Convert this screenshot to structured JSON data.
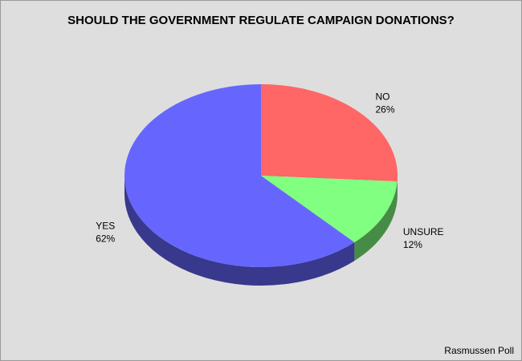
{
  "chart_data": {
    "type": "pie",
    "title": "SHOULD THE GOVERNMENT REGULATE CAMPAIGN DONATIONS?",
    "categories": [
      "NO",
      "UNSURE",
      "YES"
    ],
    "values": [
      26,
      12,
      62
    ],
    "value_labels": [
      "26%",
      "12%",
      "62%"
    ],
    "colors": [
      "#ff6666",
      "#80ff80",
      "#6666ff"
    ],
    "source": "Rasmussen Poll"
  }
}
